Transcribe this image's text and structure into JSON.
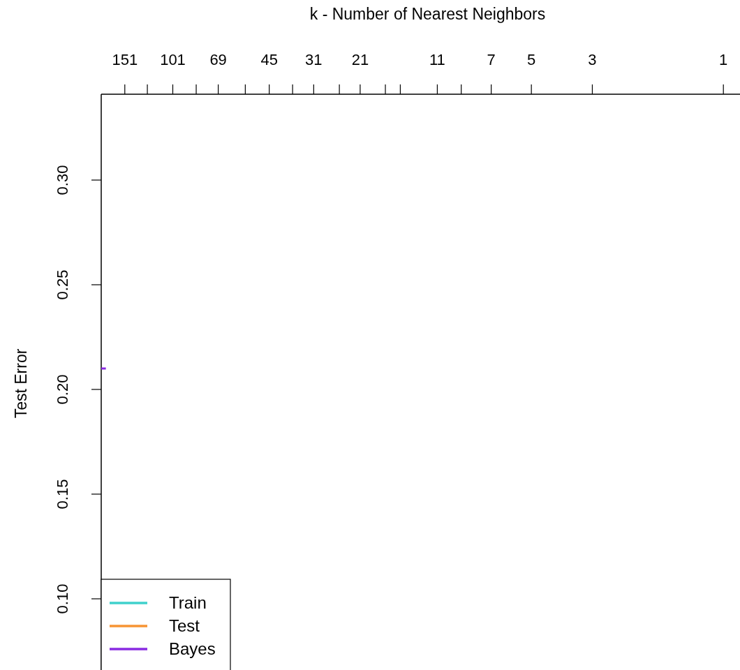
{
  "chart_data": {
    "type": "line",
    "xlabel": "k -  Number of Nearest Neighbors",
    "ylabel": "Test Error",
    "log": "x",
    "xlim": [
      184,
      0.87
    ],
    "ylim": [
      0.066,
      0.341
    ],
    "xticks": [
      151,
      {
        "value": 125,
        "label": null
      },
      101,
      {
        "value": 83,
        "label": null
      },
      69,
      {
        "value": 55,
        "label": null
      },
      45,
      {
        "value": 37,
        "label": null
      },
      31,
      {
        "value": 25,
        "label": null
      },
      21,
      {
        "value": 17,
        "label": null
      },
      {
        "value": 15,
        "label": null
      },
      11,
      {
        "value": 9,
        "label": null
      },
      7,
      5,
      3,
      1
    ],
    "yticks": [
      {
        "value": 0.1,
        "label": "0.10"
      },
      {
        "value": 0.15,
        "label": "0.15"
      },
      {
        "value": 0.2,
        "label": "0.20"
      },
      {
        "value": 0.25,
        "label": "0.25"
      },
      {
        "value": 0.3,
        "label": "0.30"
      }
    ],
    "series": [
      {
        "name": "Train",
        "color": "#3fd1cc"
      },
      {
        "name": "Test",
        "color": "#f79433"
      },
      {
        "name": "Bayes",
        "color": "#8a2be2",
        "x": [
          184,
          177
        ],
        "values": [
          0.21,
          0.21
        ]
      }
    ],
    "legend": "bottom left",
    "grid": false,
    "line_style": "solid",
    "marker": "none"
  }
}
